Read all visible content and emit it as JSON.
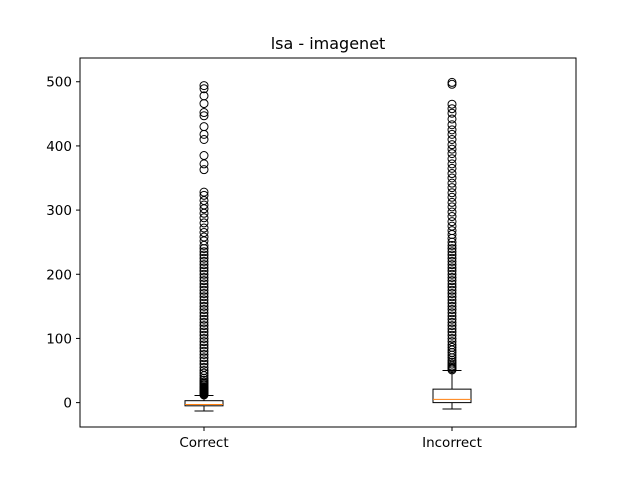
{
  "chart_data": {
    "type": "box",
    "title": "lsa - imagenet",
    "xlabel": "",
    "ylabel": "",
    "categories": [
      "Correct",
      "Incorrect"
    ],
    "ylim": [
      -38,
      537
    ],
    "yticks": [
      0,
      100,
      200,
      300,
      400,
      500
    ],
    "grid": false,
    "boxes": [
      {
        "label": "Correct",
        "whisker_low": -13,
        "q1": -5,
        "median": -3,
        "q3": 3,
        "whisker_high": 11,
        "outliers": [
          12,
          13,
          14,
          15,
          16,
          17,
          18,
          19,
          20,
          21,
          22,
          23,
          24,
          26,
          28,
          30,
          32,
          35,
          38,
          42,
          46,
          50,
          55,
          60,
          65,
          70,
          75,
          80,
          85,
          90,
          95,
          100,
          105,
          110,
          115,
          120,
          125,
          130,
          135,
          140,
          145,
          150,
          155,
          160,
          165,
          170,
          175,
          180,
          185,
          190,
          195,
          200,
          205,
          210,
          215,
          220,
          225,
          230,
          235,
          240,
          245,
          252,
          258,
          265,
          272,
          280,
          288,
          295,
          302,
          308,
          315,
          323,
          328,
          363,
          372,
          385,
          410,
          418,
          430,
          447,
          452,
          466,
          478,
          489,
          494
        ]
      },
      {
        "label": "Incorrect",
        "whisker_low": -10,
        "q1": 0,
        "median": 5,
        "q3": 21,
        "whisker_high": 50,
        "outliers": [
          51,
          53,
          55,
          57,
          60,
          63,
          66,
          70,
          74,
          78,
          82,
          86,
          90,
          95,
          100,
          105,
          110,
          115,
          120,
          125,
          130,
          135,
          140,
          145,
          150,
          155,
          160,
          165,
          170,
          175,
          180,
          185,
          190,
          195,
          200,
          205,
          210,
          215,
          220,
          225,
          230,
          235,
          240,
          245,
          250,
          256,
          262,
          268,
          275,
          282,
          290,
          297,
          305,
          312,
          320,
          327,
          335,
          342,
          350,
          357,
          365,
          372,
          380,
          388,
          395,
          402,
          410,
          418,
          425,
          433,
          442,
          451,
          458,
          465,
          496,
          499
        ]
      }
    ],
    "colors": {
      "box": "#000000",
      "median": "#ff7f0e",
      "background": "#ffffff"
    }
  }
}
